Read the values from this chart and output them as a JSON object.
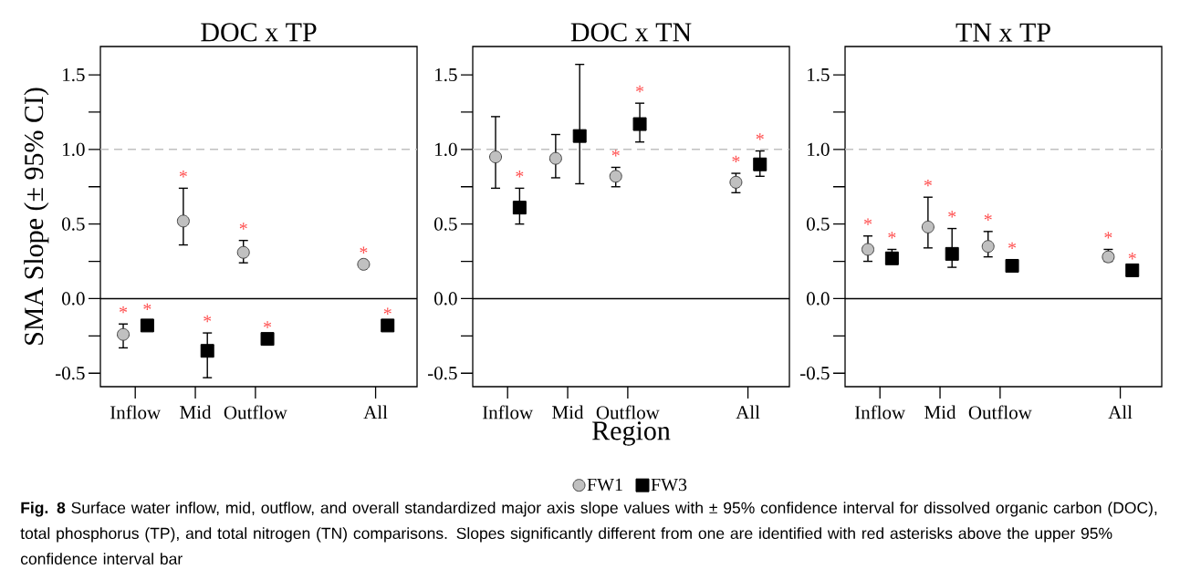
{
  "chart_data": [
    {
      "type": "scatter",
      "title": "DOC x TP",
      "ylabel": "SMA Slope (± 95% CI)",
      "categories": [
        "Inflow",
        "Mid",
        "Outflow",
        null,
        "All"
      ],
      "series": [
        {
          "color": "#c0c0c0",
          "marker": "circle",
          "values": [
            -0.24,
            0.52,
            0.31,
            null,
            0.23
          ],
          "errors": [
            [
              -0.33,
              -0.17
            ],
            [
              0.36,
              0.74
            ],
            [
              0.24,
              0.39
            ],
            null,
            null
          ],
          "value_labels": [
            "*",
            "*",
            "*",
            null,
            "*"
          ]
        },
        {
          "color": "#000000",
          "marker": "square",
          "values": [
            -0.18,
            -0.35,
            -0.27,
            null,
            -0.18
          ],
          "errors": [
            [
              -0.21,
              -0.15
            ],
            [
              -0.53,
              -0.23
            ],
            [
              -0.31,
              -0.27
            ],
            null,
            null
          ],
          "value_labels": [
            "*",
            "*",
            "*",
            null,
            "*"
          ]
        }
      ],
      "ylim": [
        -0.59,
        1.69
      ],
      "yticks": [
        {
          "value": -0.5,
          "label": "-0.5"
        },
        {
          "value": -0.25,
          "label": null
        },
        {
          "value": 0,
          "label": "0.0"
        },
        {
          "value": 0.25,
          "label": null
        },
        {
          "value": 0.5,
          "label": "0.5"
        },
        {
          "value": 0.75,
          "label": null
        },
        {
          "value": 1,
          "label": "1.0"
        },
        {
          "value": 1.25,
          "label": null
        },
        {
          "value": 1.5,
          "label": "1.5"
        }
      ],
      "ref_lines": [
        {
          "axis": "y",
          "value": 1,
          "color": "#c0c0c0",
          "line_style": "dashed"
        },
        {
          "axis": "y",
          "value": 0,
          "color": "#000000",
          "line_style": "solid"
        }
      ],
      "annotations": [
        "**Fig. 8** Surface water inflow, mid, outflow, and overall standardized major axis slope values with ± 95% confidence interval for dissolved organic carbon (DOC), total phosphorus (TP), and total nitrogen (TN) comparisons. Slopes significantly different from one are identified with red asterisks above the upper 95% confidence interval bar"
      ]
    },
    {
      "type": "scatter",
      "title": "DOC x TN",
      "xlabel": "Region",
      "categories": [
        "Inflow",
        "Mid",
        "Outflow",
        null,
        "All"
      ],
      "series": [
        {
          "name": "FW1",
          "color": "#c0c0c0",
          "marker": "circle",
          "values": [
            0.95,
            0.94,
            0.82,
            null,
            0.78
          ],
          "errors": [
            [
              0.74,
              1.22
            ],
            [
              0.81,
              1.1
            ],
            [
              0.75,
              0.88
            ],
            null,
            [
              0.71,
              0.84
            ]
          ],
          "value_labels": [
            null,
            null,
            "*",
            null,
            "*"
          ]
        },
        {
          "name": "FW3",
          "color": "#000000",
          "marker": "square",
          "values": [
            0.61,
            1.09,
            1.17,
            null,
            0.9
          ],
          "errors": [
            [
              0.5,
              0.74
            ],
            [
              0.77,
              1.57
            ],
            [
              1.05,
              1.31
            ],
            null,
            [
              0.82,
              0.99
            ]
          ],
          "value_labels": [
            "*",
            null,
            "*",
            null,
            "*"
          ]
        }
      ],
      "ylim": [
        -0.59,
        1.69
      ],
      "yticks": [
        {
          "value": -0.5,
          "label": "-0.5"
        },
        {
          "value": -0.25,
          "label": null
        },
        {
          "value": 0,
          "label": "0.0"
        },
        {
          "value": 0.25,
          "label": null
        },
        {
          "value": 0.5,
          "label": "0.5"
        },
        {
          "value": 0.75,
          "label": null
        },
        {
          "value": 1,
          "label": "1.0"
        },
        {
          "value": 1.25,
          "label": null
        },
        {
          "value": 1.5,
          "label": "1.5"
        }
      ],
      "ref_lines": [
        {
          "axis": "y",
          "value": 1,
          "color": "#c0c0c0",
          "line_style": "dashed"
        },
        {
          "axis": "y",
          "value": 0,
          "color": "#000000",
          "line_style": "solid"
        }
      ],
      "legend": "bottom"
    },
    {
      "type": "scatter",
      "title": "TN x TP",
      "categories": [
        "Inflow",
        "Mid",
        "Outflow",
        null,
        "All"
      ],
      "series": [
        {
          "color": "#c0c0c0",
          "marker": "circle",
          "values": [
            0.33,
            0.48,
            0.35,
            null,
            0.28
          ],
          "errors": [
            [
              0.25,
              0.42
            ],
            [
              0.34,
              0.68
            ],
            [
              0.28,
              0.45
            ],
            null,
            [
              0.25,
              0.33
            ]
          ],
          "value_labels": [
            "*",
            "*",
            "*",
            null,
            "*"
          ]
        },
        {
          "color": "#000000",
          "marker": "square",
          "values": [
            0.27,
            0.3,
            0.22,
            null,
            0.19
          ],
          "errors": [
            [
              0.24,
              0.33
            ],
            [
              0.21,
              0.47
            ],
            [
              0.22,
              0.26
            ],
            null,
            null
          ],
          "value_labels": [
            "*",
            "*",
            "*",
            null,
            "*"
          ]
        }
      ],
      "ylim": [
        -0.59,
        1.69
      ],
      "yticks": [
        {
          "value": -0.5,
          "label": "-0.5"
        },
        {
          "value": -0.25,
          "label": null
        },
        {
          "value": 0,
          "label": "0.0"
        },
        {
          "value": 0.25,
          "label": null
        },
        {
          "value": 0.5,
          "label": "0.5"
        },
        {
          "value": 0.75,
          "label": null
        },
        {
          "value": 1,
          "label": "1.0"
        },
        {
          "value": 1.25,
          "label": null
        },
        {
          "value": 1.5,
          "label": "1.5"
        }
      ],
      "ref_lines": [
        {
          "axis": "y",
          "value": 1,
          "color": "#c0c0c0",
          "line_style": "dashed"
        },
        {
          "axis": "y",
          "value": 0,
          "color": "#000000",
          "line_style": "solid"
        }
      ]
    }
  ]
}
